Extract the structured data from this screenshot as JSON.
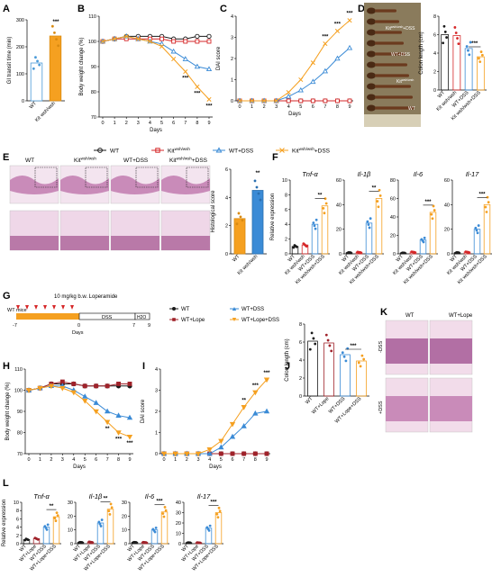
{
  "colors": {
    "WT": "#1a1a1a",
    "Kit": "#d62728",
    "WTDSS": "#3b8bd6",
    "KitDSS": "#f5a020",
    "WTLope": "#a0222a",
    "WTLopeDSS": "#f5a020"
  },
  "panels": {
    "A": "A",
    "B": "B",
    "C": "C",
    "D": "D",
    "E": "E",
    "F": "F",
    "G": "G",
    "H": "H",
    "I": "I",
    "J": "J",
    "K": "K",
    "L": "L"
  },
  "legend1": [
    "WT",
    "Kit",
    "WT+DSS",
    "Kit",
    "+DSS"
  ],
  "legend1_sup": "wsh/wsh",
  "legend2": [
    "WT",
    "WT+Lope",
    "WT+DSS",
    "WT+Lope+DSS"
  ],
  "timeline": {
    "dose": "10 mg/kg b.w. Loperamide",
    "mice": "WT mice",
    "days": "Days",
    "t_neg7": "-7",
    "t_0": "0",
    "t_7": "7",
    "t_9": "9",
    "dss": "DSS",
    "h2o": "H2O"
  },
  "histo_E": {
    "WT": "WT",
    "Kit": "Kit",
    "Kit_sup": "wsh/wsh",
    "WTDSS": "WT+DSS",
    "KitDSS": "Kit",
    "KitDSS_sup": "wsh/wsh",
    "KitDSS_suffix": "+DSS"
  },
  "histo_K": {
    "WT": "WT",
    "WTLope": "WT+Lope",
    "minusDSS": "-DSS",
    "plusDSS": "+DSS"
  },
  "photo_D": {
    "labels": [
      "Kit",
      "+DSS",
      "WT+DSS",
      "Kit",
      "WT"
    ],
    "sup": "wsh/wsh"
  },
  "chart_data": [
    {
      "panel": "A",
      "type": "bar",
      "categories": [
        "WT",
        "Kit wsh/wsh"
      ],
      "values": [
        140,
        240
      ],
      "ylabel": "GI transit time (min)",
      "ylim": [
        0,
        300
      ],
      "yticks": [
        "0",
        "100",
        "200",
        "300"
      ],
      "sig": "***"
    },
    {
      "panel": "B",
      "type": "line",
      "x": [
        0,
        1,
        2,
        3,
        4,
        5,
        6,
        7,
        8,
        9
      ],
      "xlabel": "Days",
      "ylabel": "Body weight change (%)",
      "ylim": [
        70,
        110
      ],
      "yticks": [
        "70",
        "80",
        "90",
        "100",
        "110"
      ],
      "series": [
        {
          "name": "WT",
          "values": [
            100,
            101,
            102,
            102,
            102,
            102,
            101,
            101,
            102,
            102
          ]
        },
        {
          "name": "Kit wsh/wsh",
          "values": [
            100,
            101,
            101,
            101,
            101,
            101,
            100,
            100,
            100,
            100
          ]
        },
        {
          "name": "WT+DSS",
          "values": [
            100,
            101,
            102,
            101,
            100,
            99,
            96,
            93,
            90,
            89
          ]
        },
        {
          "name": "Kit wsh/wsh+DSS",
          "values": [
            100,
            101,
            102,
            101,
            100,
            98,
            93,
            88,
            82,
            77
          ]
        }
      ],
      "sig": [
        "***",
        "***",
        "***"
      ]
    },
    {
      "panel": "C",
      "type": "line",
      "x": [
        0,
        1,
        2,
        3,
        4,
        5,
        6,
        7,
        8,
        9
      ],
      "xlabel": "Days",
      "ylabel": "DAI score",
      "ylim": [
        0,
        4
      ],
      "yticks": [
        "0",
        "1",
        "2",
        "3",
        "4"
      ],
      "series": [
        {
          "name": "WT",
          "values": [
            0,
            0,
            0,
            0,
            0,
            0,
            0,
            0,
            0,
            0
          ]
        },
        {
          "name": "Kit wsh/wsh",
          "values": [
            0,
            0,
            0,
            0,
            0,
            0,
            0,
            0,
            0,
            0
          ]
        },
        {
          "name": "WT+DSS",
          "values": [
            0,
            0,
            0,
            0,
            0.2,
            0.5,
            0.9,
            1.4,
            2.0,
            2.5
          ]
        },
        {
          "name": "Kit wsh/wsh+DSS",
          "values": [
            0,
            0,
            0,
            0,
            0.4,
            1.0,
            1.8,
            2.7,
            3.3,
            3.8
          ]
        }
      ],
      "sig": [
        "***",
        "***",
        "***"
      ]
    },
    {
      "panel": "D",
      "type": "bar",
      "categories": [
        "WT",
        "Kit wsh/wsh",
        "WT+DSS",
        "Kit wsh/wsh+DSS"
      ],
      "values": [
        6.0,
        5.9,
        4.5,
        3.6
      ],
      "ylabel": "Colon length (cm)",
      "ylim": [
        0,
        8
      ],
      "yticks": [
        "0",
        "2",
        "4",
        "6",
        "8"
      ],
      "sig": "***"
    },
    {
      "panel": "E",
      "type": "bar",
      "categories": [
        "WT",
        "Kit wsh/wsh"
      ],
      "values": [
        2.5,
        4.5
      ],
      "ylabel": "Histological score",
      "ylim": [
        0,
        6
      ],
      "yticks": [
        "0",
        "2",
        "4",
        "6"
      ],
      "sig": "**"
    },
    {
      "panel": "F",
      "type": "bar",
      "ylabel": "Relative expression",
      "categories": [
        "WT",
        "Kit wsh/wsh",
        "WT+DSS",
        "Kit wsh/wsh+DSS"
      ],
      "subplots": [
        {
          "title": "Tnf-α",
          "values": [
            1,
            1.2,
            4,
            6.5
          ],
          "ylim": [
            0,
            10
          ],
          "yticks": [
            "0",
            "2",
            "4",
            "6",
            "8",
            "10"
          ],
          "sig": "**"
        },
        {
          "title": "Il-1β",
          "values": [
            1,
            1.3,
            25,
            45
          ],
          "ylim": [
            0,
            60
          ],
          "yticks": [
            "0",
            "20",
            "40",
            "60"
          ],
          "sig": "**"
        },
        {
          "title": "Il-6",
          "values": [
            1,
            2,
            15,
            45
          ],
          "ylim": [
            0,
            80
          ],
          "yticks": [
            "0",
            "20",
            "40",
            "60",
            "80"
          ],
          "sig": "***"
        },
        {
          "title": "Il-17",
          "values": [
            1,
            1.5,
            20,
            40
          ],
          "ylim": [
            0,
            60
          ],
          "yticks": [
            "0",
            "20",
            "40",
            "60"
          ],
          "sig": "***"
        }
      ]
    },
    {
      "panel": "H",
      "type": "line",
      "x": [
        0,
        1,
        2,
        3,
        4,
        5,
        6,
        7,
        8,
        9
      ],
      "xlabel": "Days",
      "ylabel": "Body weight change (%)",
      "ylim": [
        70,
        110
      ],
      "yticks": [
        "70",
        "80",
        "90",
        "100",
        "110"
      ],
      "series": [
        {
          "name": "WT",
          "values": [
            100,
            101,
            103,
            103,
            103,
            102,
            102,
            102,
            102,
            102
          ]
        },
        {
          "name": "WT+Lope",
          "values": [
            100,
            101,
            103,
            104,
            103,
            102,
            102,
            102,
            103,
            103
          ]
        },
        {
          "name": "WT+DSS",
          "values": [
            100,
            101,
            102,
            102,
            100,
            97,
            94,
            90,
            88,
            87
          ]
        },
        {
          "name": "WT+Lope+DSS",
          "values": [
            100,
            101,
            102,
            101,
            99,
            95,
            90,
            85,
            80,
            78
          ]
        }
      ],
      "sig": [
        "**",
        "***",
        "***"
      ]
    },
    {
      "panel": "I",
      "type": "line",
      "x": [
        0,
        1,
        2,
        3,
        4,
        5,
        6,
        7,
        8,
        9
      ],
      "xlabel": "Days",
      "ylabel": "DAI score",
      "ylim": [
        0,
        4
      ],
      "yticks": [
        "0",
        "1",
        "2",
        "3",
        "4"
      ],
      "series": [
        {
          "name": "WT",
          "values": [
            0,
            0,
            0,
            0,
            0,
            0,
            0,
            0,
            0,
            0
          ]
        },
        {
          "name": "WT+Lope",
          "values": [
            0,
            0,
            0,
            0,
            0,
            0,
            0,
            0,
            0,
            0
          ]
        },
        {
          "name": "WT+DSS",
          "values": [
            0,
            0,
            0,
            0,
            0,
            0.3,
            0.8,
            1.3,
            1.9,
            2.0
          ]
        },
        {
          "name": "WT+Lope+DSS",
          "values": [
            0,
            0,
            0,
            0,
            0.2,
            0.6,
            1.4,
            2.2,
            2.9,
            3.5
          ]
        }
      ],
      "sig": [
        "**",
        "***",
        "***"
      ]
    },
    {
      "panel": "J",
      "type": "bar",
      "categories": [
        "WT",
        "WT+Lope",
        "WT+DSS",
        "WT+Lope+DSS"
      ],
      "values": [
        6.1,
        5.9,
        4.6,
        3.9
      ],
      "ylabel": "Colon length (cm)",
      "ylim": [
        0,
        8
      ],
      "yticks": [
        "0",
        "2",
        "4",
        "6",
        "8"
      ],
      "sig": "***"
    },
    {
      "panel": "L",
      "type": "bar",
      "ylabel": "Relative expression",
      "categories": [
        "WT",
        "WT+Lope",
        "WT+DSS",
        "WT+Lope+DSS"
      ],
      "subplots": [
        {
          "title": "Tnf-α",
          "values": [
            1,
            1.2,
            4,
            6.5
          ],
          "ylim": [
            0,
            10
          ],
          "yticks": [
            "0",
            "2",
            "4",
            "6",
            "8",
            "10"
          ],
          "sig": "**"
        },
        {
          "title": "Il-1β",
          "values": [
            1,
            1.2,
            15,
            25
          ],
          "ylim": [
            0,
            30
          ],
          "yticks": [
            "0",
            "10",
            "20",
            "30"
          ],
          "sig": "**"
        },
        {
          "title": "Il-6",
          "values": [
            1,
            1,
            10,
            23
          ],
          "ylim": [
            0,
            30
          ],
          "yticks": [
            "0",
            "10",
            "20",
            "30"
          ],
          "sig": "***"
        },
        {
          "title": "Il-17",
          "values": [
            1,
            1,
            15,
            30
          ],
          "ylim": [
            0,
            40
          ],
          "yticks": [
            "0",
            "10",
            "20",
            "30",
            "40"
          ],
          "sig": "***"
        }
      ]
    }
  ]
}
